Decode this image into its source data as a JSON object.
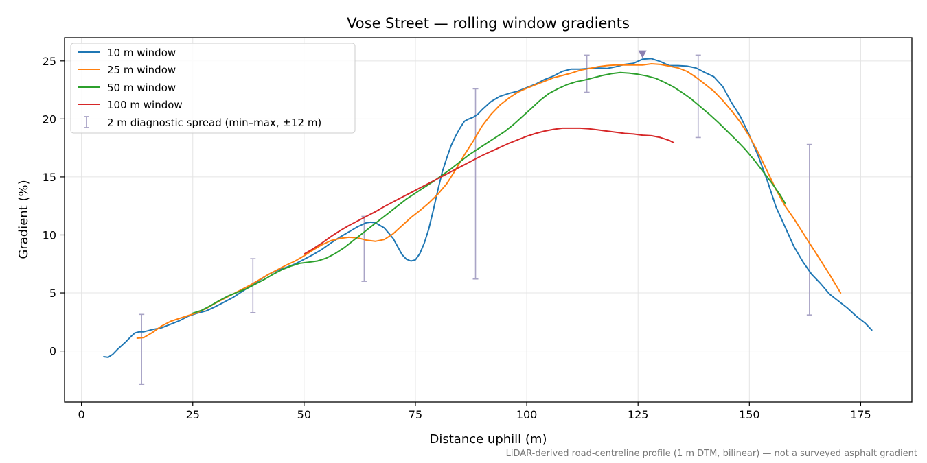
{
  "chart_data": {
    "type": "line",
    "title": "Vose Street — rolling window gradients",
    "xlabel": "Distance uphill (m)",
    "ylabel": "Gradient (%)",
    "xlim": [
      -3.8,
      186.5
    ],
    "ylim": [
      -4.4,
      27
    ],
    "xticks": [
      0,
      25,
      50,
      75,
      100,
      125,
      150,
      175
    ],
    "yticks": [
      0,
      5,
      10,
      15,
      20,
      25
    ],
    "grid": true,
    "legend_position": "top-left",
    "footnote": "LiDAR-derived road-centreline profile (1 m DTM, bilinear) — not a surveyed asphalt gradient",
    "series": [
      {
        "name": "10 m window",
        "color": "#1f77b4",
        "points": [
          [
            5,
            -0.5
          ],
          [
            6,
            -0.55
          ],
          [
            7,
            -0.3
          ],
          [
            8,
            0.1
          ],
          [
            9,
            0.45
          ],
          [
            10,
            0.8
          ],
          [
            11,
            1.2
          ],
          [
            12,
            1.55
          ],
          [
            13,
            1.65
          ],
          [
            14,
            1.65
          ],
          [
            16,
            1.85
          ],
          [
            18,
            2.0
          ],
          [
            20,
            2.3
          ],
          [
            22,
            2.6
          ],
          [
            24,
            3.0
          ],
          [
            26,
            3.25
          ],
          [
            28,
            3.45
          ],
          [
            30,
            3.8
          ],
          [
            32,
            4.2
          ],
          [
            34,
            4.6
          ],
          [
            36,
            5.1
          ],
          [
            38,
            5.6
          ],
          [
            40,
            6.1
          ],
          [
            42,
            6.6
          ],
          [
            44,
            6.95
          ],
          [
            46,
            7.2
          ],
          [
            48,
            7.5
          ],
          [
            50,
            7.9
          ],
          [
            52,
            8.3
          ],
          [
            54,
            8.75
          ],
          [
            56,
            9.3
          ],
          [
            58,
            9.8
          ],
          [
            60,
            10.25
          ],
          [
            62,
            10.7
          ],
          [
            64,
            11.05
          ],
          [
            65,
            11.1
          ],
          [
            66,
            11.05
          ],
          [
            68,
            10.6
          ],
          [
            70,
            9.7
          ],
          [
            71,
            9.0
          ],
          [
            72,
            8.3
          ],
          [
            73,
            7.9
          ],
          [
            74,
            7.75
          ],
          [
            75,
            7.85
          ],
          [
            76,
            8.4
          ],
          [
            77,
            9.3
          ],
          [
            78,
            10.5
          ],
          [
            79,
            12.1
          ],
          [
            80,
            13.8
          ],
          [
            81,
            15.4
          ],
          [
            82,
            16.6
          ],
          [
            83,
            17.7
          ],
          [
            84,
            18.5
          ],
          [
            85,
            19.2
          ],
          [
            86,
            19.8
          ],
          [
            87,
            20.0
          ],
          [
            88,
            20.15
          ],
          [
            89,
            20.4
          ],
          [
            90,
            20.8
          ],
          [
            92,
            21.5
          ],
          [
            94,
            21.95
          ],
          [
            96,
            22.2
          ],
          [
            98,
            22.4
          ],
          [
            100,
            22.7
          ],
          [
            102,
            23.0
          ],
          [
            104,
            23.4
          ],
          [
            106,
            23.7
          ],
          [
            108,
            24.1
          ],
          [
            110,
            24.3
          ],
          [
            112,
            24.3
          ],
          [
            114,
            24.35
          ],
          [
            116,
            24.4
          ],
          [
            118,
            24.35
          ],
          [
            120,
            24.5
          ],
          [
            122,
            24.7
          ],
          [
            124,
            24.8
          ],
          [
            126,
            25.15
          ],
          [
            128,
            25.2
          ],
          [
            130,
            24.95
          ],
          [
            132,
            24.6
          ],
          [
            134,
            24.6
          ],
          [
            136,
            24.55
          ],
          [
            138,
            24.4
          ],
          [
            140,
            24.0
          ],
          [
            142,
            23.65
          ],
          [
            144,
            22.8
          ],
          [
            146,
            21.4
          ],
          [
            148,
            20.2
          ],
          [
            150,
            18.6
          ],
          [
            152,
            16.8
          ],
          [
            154,
            14.7
          ],
          [
            156,
            12.4
          ],
          [
            158,
            10.7
          ],
          [
            160,
            9.0
          ],
          [
            162,
            7.7
          ],
          [
            164,
            6.6
          ],
          [
            166,
            5.8
          ],
          [
            168,
            4.9
          ],
          [
            170,
            4.3
          ],
          [
            172,
            3.7
          ],
          [
            174,
            3.0
          ],
          [
            176,
            2.4
          ],
          [
            177.5,
            1.8
          ]
        ]
      },
      {
        "name": "25 m window",
        "color": "#ff7f0e",
        "points": [
          [
            12.5,
            1.1
          ],
          [
            14,
            1.15
          ],
          [
            16,
            1.6
          ],
          [
            18,
            2.15
          ],
          [
            20,
            2.55
          ],
          [
            22,
            2.8
          ],
          [
            24,
            3.05
          ],
          [
            26,
            3.3
          ],
          [
            28,
            3.65
          ],
          [
            30,
            4.1
          ],
          [
            32,
            4.5
          ],
          [
            34,
            4.9
          ],
          [
            36,
            5.3
          ],
          [
            38,
            5.7
          ],
          [
            40,
            6.15
          ],
          [
            42,
            6.6
          ],
          [
            44,
            7.0
          ],
          [
            46,
            7.4
          ],
          [
            48,
            7.75
          ],
          [
            50,
            8.2
          ],
          [
            52,
            8.7
          ],
          [
            54,
            9.15
          ],
          [
            56,
            9.5
          ],
          [
            58,
            9.7
          ],
          [
            60,
            9.8
          ],
          [
            62,
            9.75
          ],
          [
            64,
            9.55
          ],
          [
            66,
            9.45
          ],
          [
            68,
            9.6
          ],
          [
            70,
            10.1
          ],
          [
            72,
            10.8
          ],
          [
            74,
            11.5
          ],
          [
            76,
            12.1
          ],
          [
            78,
            12.75
          ],
          [
            80,
            13.5
          ],
          [
            82,
            14.4
          ],
          [
            84,
            15.6
          ],
          [
            86,
            16.9
          ],
          [
            88,
            18.1
          ],
          [
            90,
            19.4
          ],
          [
            92,
            20.4
          ],
          [
            94,
            21.2
          ],
          [
            96,
            21.8
          ],
          [
            98,
            22.3
          ],
          [
            100,
            22.65
          ],
          [
            102,
            22.95
          ],
          [
            104,
            23.25
          ],
          [
            106,
            23.55
          ],
          [
            108,
            23.75
          ],
          [
            110,
            23.95
          ],
          [
            112,
            24.2
          ],
          [
            114,
            24.35
          ],
          [
            116,
            24.5
          ],
          [
            118,
            24.6
          ],
          [
            120,
            24.65
          ],
          [
            122,
            24.65
          ],
          [
            124,
            24.65
          ],
          [
            126,
            24.65
          ],
          [
            128,
            24.75
          ],
          [
            130,
            24.7
          ],
          [
            132,
            24.55
          ],
          [
            134,
            24.4
          ],
          [
            136,
            24.1
          ],
          [
            138,
            23.6
          ],
          [
            140,
            23.0
          ],
          [
            142,
            22.4
          ],
          [
            144,
            21.6
          ],
          [
            146,
            20.7
          ],
          [
            148,
            19.7
          ],
          [
            150,
            18.5
          ],
          [
            152,
            17.1
          ],
          [
            154,
            15.5
          ],
          [
            156,
            13.9
          ],
          [
            158,
            12.5
          ],
          [
            160,
            11.4
          ],
          [
            162,
            10.2
          ],
          [
            164,
            9.0
          ],
          [
            166,
            7.8
          ],
          [
            168,
            6.6
          ],
          [
            170.5,
            5.0
          ]
        ]
      },
      {
        "name": "50 m window",
        "color": "#2ca02c",
        "points": [
          [
            25,
            3.25
          ],
          [
            27,
            3.5
          ],
          [
            29,
            3.9
          ],
          [
            31,
            4.35
          ],
          [
            33,
            4.75
          ],
          [
            35,
            5.05
          ],
          [
            37,
            5.35
          ],
          [
            39,
            5.75
          ],
          [
            41,
            6.15
          ],
          [
            43,
            6.6
          ],
          [
            45,
            7.0
          ],
          [
            47,
            7.3
          ],
          [
            49,
            7.55
          ],
          [
            51,
            7.65
          ],
          [
            53,
            7.75
          ],
          [
            55,
            8.0
          ],
          [
            57,
            8.4
          ],
          [
            59,
            8.9
          ],
          [
            61,
            9.5
          ],
          [
            63,
            10.1
          ],
          [
            65,
            10.7
          ],
          [
            67,
            11.3
          ],
          [
            69,
            11.9
          ],
          [
            71,
            12.5
          ],
          [
            73,
            13.1
          ],
          [
            75,
            13.6
          ],
          [
            77,
            14.1
          ],
          [
            79,
            14.6
          ],
          [
            81,
            15.15
          ],
          [
            83,
            15.7
          ],
          [
            85,
            16.3
          ],
          [
            87,
            16.9
          ],
          [
            89,
            17.4
          ],
          [
            91,
            17.9
          ],
          [
            93,
            18.4
          ],
          [
            95,
            18.9
          ],
          [
            97,
            19.5
          ],
          [
            99,
            20.2
          ],
          [
            101,
            20.9
          ],
          [
            103,
            21.6
          ],
          [
            105,
            22.2
          ],
          [
            107,
            22.6
          ],
          [
            109,
            22.95
          ],
          [
            111,
            23.2
          ],
          [
            113,
            23.35
          ],
          [
            115,
            23.55
          ],
          [
            117,
            23.75
          ],
          [
            119,
            23.9
          ],
          [
            121,
            24.0
          ],
          [
            123,
            23.95
          ],
          [
            125,
            23.85
          ],
          [
            127,
            23.7
          ],
          [
            129,
            23.5
          ],
          [
            131,
            23.15
          ],
          [
            133,
            22.75
          ],
          [
            135,
            22.25
          ],
          [
            137,
            21.7
          ],
          [
            139,
            21.05
          ],
          [
            141,
            20.4
          ],
          [
            143,
            19.7
          ],
          [
            145,
            18.95
          ],
          [
            147,
            18.2
          ],
          [
            149,
            17.4
          ],
          [
            151,
            16.5
          ],
          [
            153,
            15.5
          ],
          [
            155,
            14.5
          ],
          [
            157,
            13.4
          ],
          [
            158,
            12.75
          ]
        ]
      },
      {
        "name": "100 m window",
        "color": "#d62728",
        "points": [
          [
            50,
            8.35
          ],
          [
            52,
            8.8
          ],
          [
            54,
            9.3
          ],
          [
            56,
            9.85
          ],
          [
            58,
            10.35
          ],
          [
            60,
            10.8
          ],
          [
            62,
            11.2
          ],
          [
            64,
            11.6
          ],
          [
            66,
            12.0
          ],
          [
            68,
            12.45
          ],
          [
            70,
            12.85
          ],
          [
            72,
            13.25
          ],
          [
            74,
            13.65
          ],
          [
            76,
            14.05
          ],
          [
            78,
            14.45
          ],
          [
            80,
            14.85
          ],
          [
            82,
            15.25
          ],
          [
            84,
            15.65
          ],
          [
            86,
            16.05
          ],
          [
            88,
            16.45
          ],
          [
            90,
            16.85
          ],
          [
            92,
            17.2
          ],
          [
            94,
            17.55
          ],
          [
            96,
            17.9
          ],
          [
            98,
            18.2
          ],
          [
            100,
            18.5
          ],
          [
            102,
            18.75
          ],
          [
            104,
            18.95
          ],
          [
            106,
            19.1
          ],
          [
            108,
            19.2
          ],
          [
            110,
            19.2
          ],
          [
            112,
            19.2
          ],
          [
            114,
            19.15
          ],
          [
            116,
            19.05
          ],
          [
            118,
            18.95
          ],
          [
            120,
            18.85
          ],
          [
            122,
            18.75
          ],
          [
            124,
            18.7
          ],
          [
            126,
            18.6
          ],
          [
            128,
            18.55
          ],
          [
            130,
            18.4
          ],
          [
            132,
            18.15
          ],
          [
            133,
            17.95
          ]
        ]
      }
    ],
    "diagnostic": {
      "name": "2 m diagnostic spread (min–max, ±12 m)",
      "color": "#a9a4c6",
      "ranges": [
        {
          "x": 13.5,
          "min": -2.9,
          "max": 3.15
        },
        {
          "x": 38.5,
          "min": 3.3,
          "max": 7.95
        },
        {
          "x": 63.5,
          "min": 6.0,
          "max": 11.6
        },
        {
          "x": 88.5,
          "min": 6.2,
          "max": 22.6
        },
        {
          "x": 113.5,
          "min": 22.3,
          "max": 25.5
        },
        {
          "x": 138.5,
          "min": 18.4,
          "max": 25.5
        },
        {
          "x": 163.5,
          "min": 3.1,
          "max": 17.8
        }
      ]
    },
    "peak_marker": {
      "x": 126,
      "y": 25.6,
      "color": "#8a7fb1"
    }
  }
}
